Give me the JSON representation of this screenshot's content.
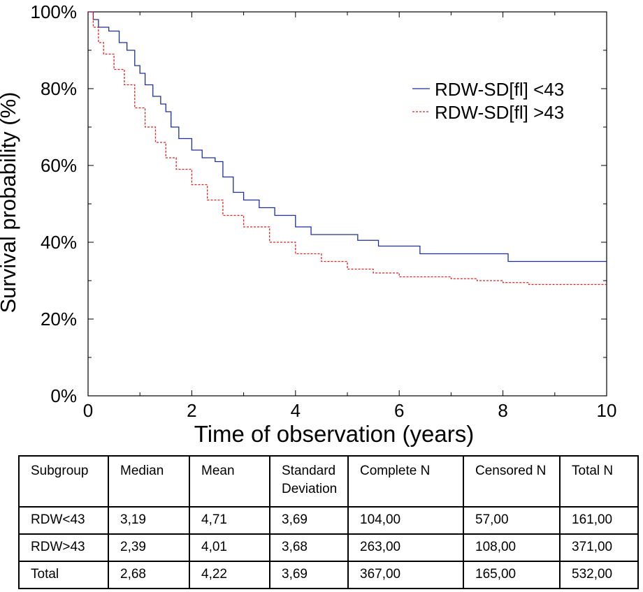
{
  "chart_data": {
    "type": "line",
    "title": "",
    "xlabel": "Time of observation (years)",
    "ylabel": "Survival probability (%)",
    "xlim": [
      0,
      10
    ],
    "ylim": [
      0,
      100
    ],
    "x_ticks": [
      "0",
      "2",
      "4",
      "6",
      "8",
      "10"
    ],
    "y_ticks": [
      "0%",
      "20%",
      "40%",
      "60%",
      "80%",
      "100%"
    ],
    "x_tick_values": [
      0,
      2,
      4,
      6,
      8,
      10
    ],
    "y_tick_values": [
      0,
      20,
      40,
      60,
      80,
      100
    ],
    "legend_position": "top-right",
    "series": [
      {
        "name": "RDW-SD[fl] <43",
        "color": "#1a2fa0",
        "line_style": "solid",
        "x": [
          0,
          0.1,
          0.2,
          0.4,
          0.6,
          0.75,
          0.9,
          1.0,
          1.1,
          1.25,
          1.4,
          1.5,
          1.6,
          1.75,
          2.0,
          2.2,
          2.45,
          2.6,
          2.8,
          3.0,
          3.3,
          3.6,
          4.0,
          4.3,
          5.2,
          5.6,
          6.4,
          8.1,
          10.0
        ],
        "y": [
          100,
          98,
          96,
          95,
          92,
          90,
          86,
          84,
          81,
          78,
          76,
          74,
          70,
          67,
          64,
          62,
          61,
          57,
          53,
          51,
          49,
          47,
          44,
          42,
          40.5,
          39,
          37,
          35,
          35
        ]
      },
      {
        "name": "RDW-SD[fl] >43",
        "color": "#e02020",
        "line_style": "dashed",
        "x": [
          0,
          0.1,
          0.2,
          0.3,
          0.5,
          0.7,
          0.9,
          1.1,
          1.3,
          1.5,
          1.7,
          2.0,
          2.3,
          2.6,
          3.0,
          3.5,
          4.0,
          4.5,
          5.0,
          5.5,
          6.0,
          6.5,
          7.0,
          7.5,
          8.0,
          8.5,
          9.0,
          10.0
        ],
        "y": [
          100,
          96,
          92,
          89,
          85,
          81,
          75,
          70,
          66,
          62,
          59,
          55,
          51,
          47,
          44,
          40,
          37,
          35,
          33,
          32,
          31,
          31,
          30.5,
          30,
          29.5,
          29,
          29,
          29
        ]
      }
    ]
  },
  "table": {
    "headers": [
      "Subgroup",
      "Median",
      "Mean",
      "Standard Deviation",
      "Complete N",
      "Censored N",
      "Total N"
    ],
    "rows": [
      [
        "RDW<43",
        "3,19",
        "4,71",
        "3,69",
        "104,00",
        "57,00",
        "161,00"
      ],
      [
        "RDW>43",
        "2,39",
        "4,01",
        "3,68",
        "263,00",
        "108,00",
        "371,00"
      ],
      [
        "Total",
        "2,68",
        "4,22",
        "3,69",
        "367,00",
        "165,00",
        "532,00"
      ]
    ]
  }
}
